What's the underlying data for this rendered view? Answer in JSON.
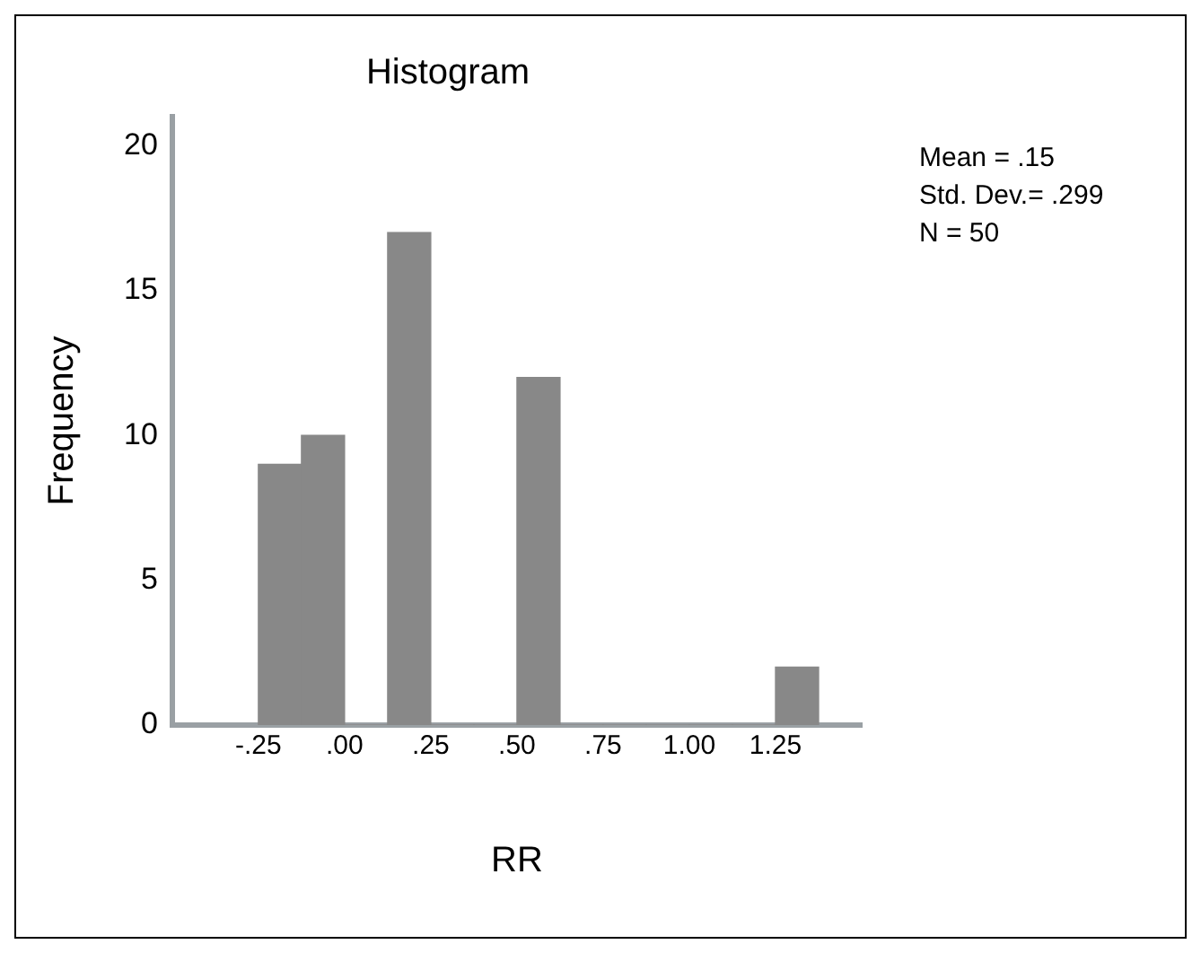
{
  "chart_data": {
    "type": "histogram",
    "title": "Histogram",
    "xlabel": "RR",
    "ylabel": "Frequency",
    "bins": [
      -0.25,
      -0.125,
      0,
      0.125,
      0.25,
      0.375,
      0.5,
      0.625,
      0.75,
      0.875,
      1,
      1.125,
      1.25,
      1.375
    ],
    "values": [
      9,
      10,
      0,
      17,
      0,
      0,
      12,
      0,
      0,
      0,
      0,
      0,
      2
    ],
    "color": "#888888",
    "xlim": [
      -0.5,
      1.5
    ],
    "xticks": [
      {
        "value": -0.25,
        "label": "-.25"
      },
      {
        "value": 0,
        "label": ".00"
      },
      {
        "value": 0.25,
        "label": ".25"
      },
      {
        "value": 0.5,
        "label": ".50"
      },
      {
        "value": 0.75,
        "label": ".75"
      },
      {
        "value": 1,
        "label": "1.00"
      },
      {
        "value": 1.25,
        "label": "1.25"
      }
    ],
    "ylim": [
      0,
      21
    ],
    "yticks": [
      0,
      5,
      10,
      15,
      20
    ],
    "annotations": [
      "Mean = .15",
      "Std. Dev.= .299",
      "N = 50"
    ],
    "grid": false,
    "legend": false
  }
}
